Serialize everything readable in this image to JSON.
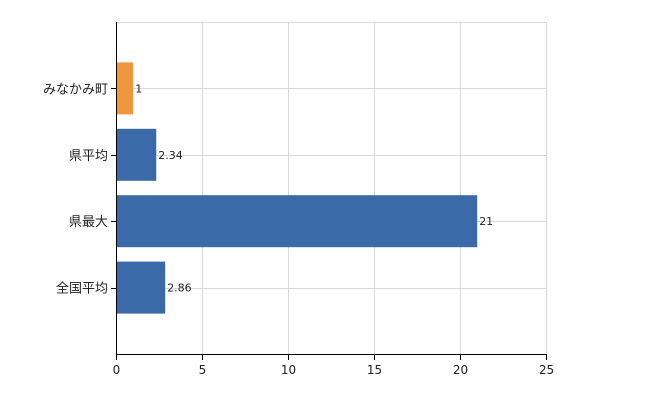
{
  "chart_data": {
    "type": "bar",
    "orientation": "horizontal",
    "title": "",
    "xlabel": "",
    "ylabel": "",
    "categories": [
      "みなかみ町",
      "県平均",
      "県最大",
      "全国平均"
    ],
    "values": [
      1,
      2.34,
      21,
      2.86
    ],
    "data_labels": [
      "1",
      "2.34",
      "21",
      "2.86"
    ],
    "bar_colors": [
      "#f0963c",
      "#3a6aa8",
      "#3a6aa8",
      "#3a6aa8"
    ],
    "xlim": [
      0,
      25
    ],
    "x_ticks": [
      0,
      5,
      10,
      15,
      20,
      25
    ],
    "x_tick_labels": [
      "0",
      "5",
      "10",
      "15",
      "20",
      "25"
    ],
    "grid": true,
    "legend": "none"
  }
}
